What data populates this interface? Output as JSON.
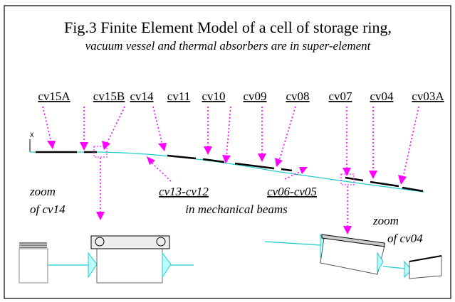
{
  "header": {
    "title": "Fig.3 Finite Element Model of a cell of storage ring,",
    "subtitle": "vacuum vessel and thermal absorbers are in super-element"
  },
  "axis_label": "X",
  "labels": [
    "cv15A",
    "cv15B",
    "cv14",
    "cv11",
    "cv10",
    "cv09",
    "cv08",
    "cv07",
    "cv04",
    "cv03A"
  ],
  "beam_labels": [
    "cv13-cv12",
    "cv06-cv05"
  ],
  "beam_note": "in mechanical beams",
  "zooms": [
    {
      "line1": "zoom",
      "line2": "of cv14"
    },
    {
      "line1": "zoom",
      "line2": "of cv04"
    }
  ]
}
